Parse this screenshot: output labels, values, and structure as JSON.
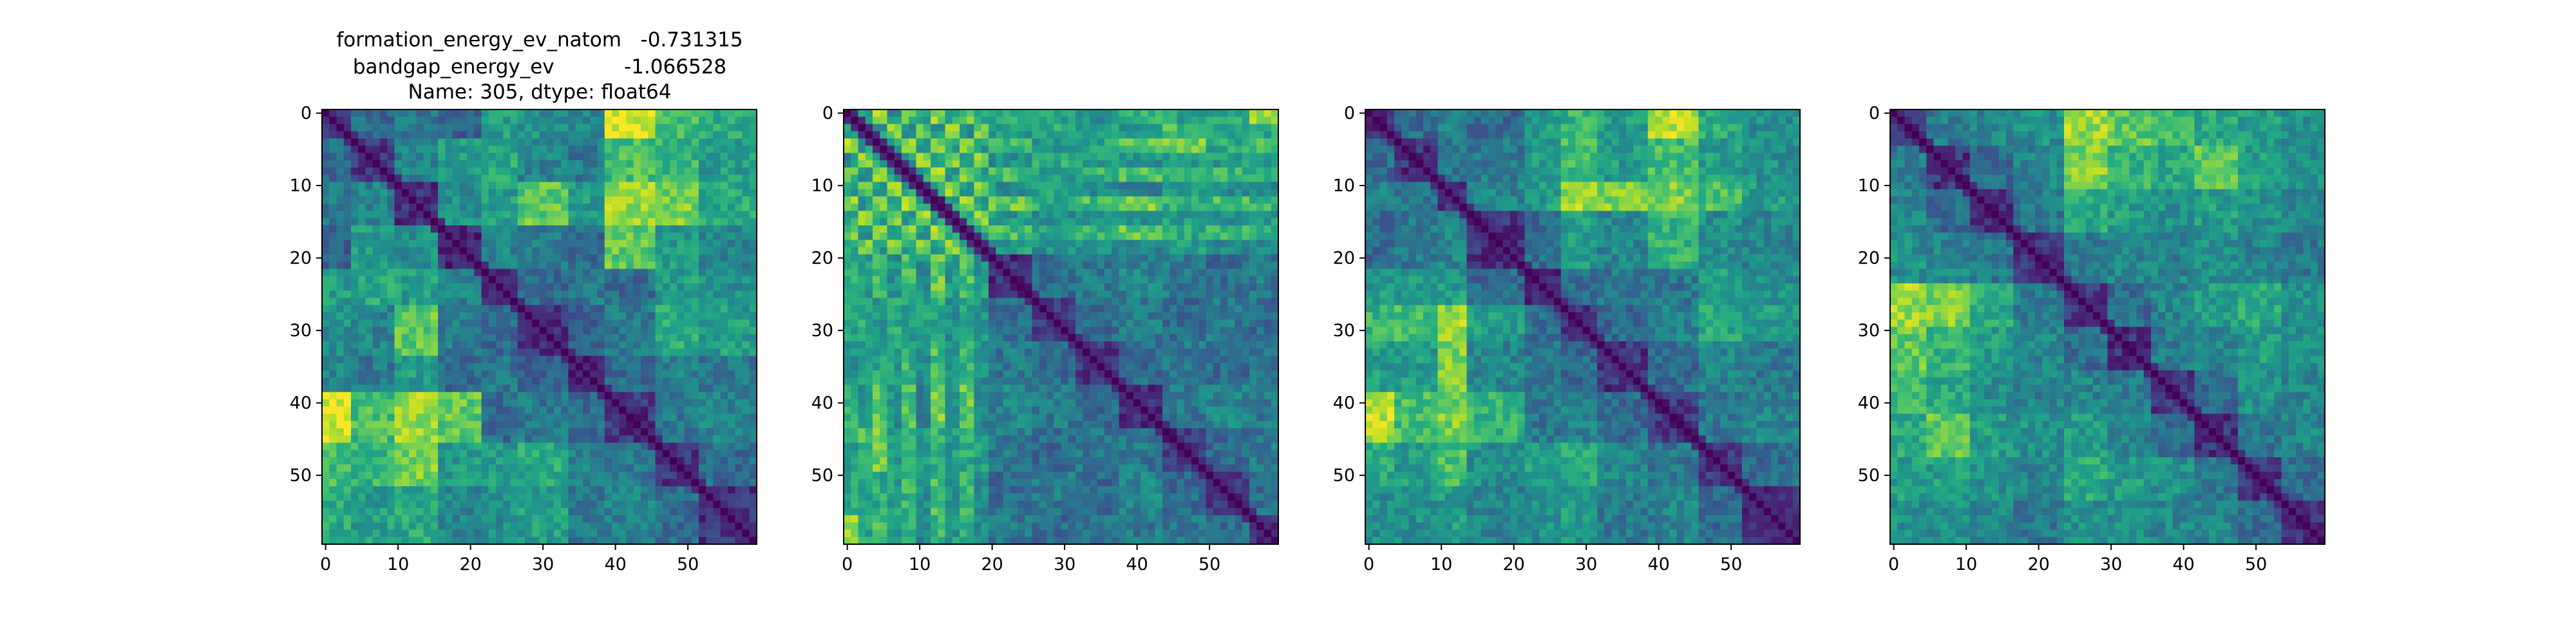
{
  "figure": {
    "title_lines": [
      "formation_energy_ev_natom   -0.731315",
      "bandgap_energy_ev           -1.066528",
      "Name: 305, dtype: float64"
    ]
  },
  "chart_data": [
    {
      "type": "heatmap",
      "colormap": "viridis",
      "size": 60,
      "title": "",
      "xlabel": "",
      "ylabel": "",
      "xlim": [
        0,
        59
      ],
      "ylim": [
        59,
        0
      ],
      "xticks": [
        0,
        10,
        20,
        30,
        40,
        50
      ],
      "yticks": [
        0,
        10,
        20,
        30,
        40,
        50
      ],
      "grid": false,
      "block_boundaries": [
        0,
        4,
        10,
        16,
        22,
        27,
        34,
        39,
        46,
        52,
        60
      ],
      "block_values": [
        [
          0.2,
          0.35,
          0.4,
          0.3,
          0.55,
          0.5,
          0.45,
          0.95,
          0.7,
          0.6
        ],
        [
          0.35,
          0.15,
          0.45,
          0.55,
          0.6,
          0.45,
          0.4,
          0.7,
          0.65,
          0.55
        ],
        [
          0.4,
          0.45,
          0.15,
          0.5,
          0.55,
          0.75,
          0.55,
          0.85,
          0.8,
          0.6
        ],
        [
          0.3,
          0.55,
          0.5,
          0.12,
          0.45,
          0.4,
          0.35,
          0.75,
          0.55,
          0.45
        ],
        [
          0.55,
          0.6,
          0.55,
          0.45,
          0.15,
          0.35,
          0.4,
          0.35,
          0.55,
          0.5
        ],
        [
          0.5,
          0.45,
          0.75,
          0.4,
          0.35,
          0.15,
          0.3,
          0.4,
          0.6,
          0.55
        ],
        [
          0.45,
          0.4,
          0.55,
          0.35,
          0.4,
          0.3,
          0.12,
          0.35,
          0.45,
          0.4
        ],
        [
          0.95,
          0.7,
          0.85,
          0.75,
          0.35,
          0.4,
          0.35,
          0.15,
          0.4,
          0.45
        ],
        [
          0.7,
          0.65,
          0.8,
          0.55,
          0.55,
          0.6,
          0.45,
          0.4,
          0.15,
          0.35
        ],
        [
          0.6,
          0.55,
          0.6,
          0.45,
          0.5,
          0.55,
          0.4,
          0.45,
          0.35,
          0.15
        ]
      ]
    },
    {
      "type": "heatmap",
      "colormap": "viridis",
      "size": 60,
      "title": "",
      "xlabel": "",
      "ylabel": "",
      "xlim": [
        0,
        59
      ],
      "ylim": [
        59,
        0
      ],
      "xticks": [
        0,
        10,
        20,
        30,
        40,
        50
      ],
      "yticks": [
        0,
        10,
        20,
        30,
        40,
        50
      ],
      "grid": false,
      "block_boundaries": [
        0,
        2,
        4,
        6,
        8,
        10,
        12,
        14,
        16,
        18,
        20,
        26,
        32,
        38,
        44,
        50,
        56,
        60
      ],
      "block_values": [
        [
          0.2,
          0.6,
          0.85,
          0.5,
          0.7,
          0.55,
          0.8,
          0.6,
          0.75,
          0.55,
          0.6,
          0.55,
          0.5,
          0.65,
          0.55,
          0.6,
          0.85
        ],
        [
          0.6,
          0.15,
          0.55,
          0.8,
          0.5,
          0.75,
          0.55,
          0.85,
          0.5,
          0.8,
          0.55,
          0.6,
          0.55,
          0.5,
          0.7,
          0.55,
          0.6
        ],
        [
          0.85,
          0.55,
          0.15,
          0.6,
          0.85,
          0.55,
          0.8,
          0.6,
          0.85,
          0.55,
          0.7,
          0.55,
          0.6,
          0.75,
          0.8,
          0.6,
          0.7
        ],
        [
          0.5,
          0.8,
          0.6,
          0.15,
          0.55,
          0.85,
          0.55,
          0.8,
          0.55,
          0.85,
          0.5,
          0.6,
          0.55,
          0.5,
          0.55,
          0.55,
          0.5
        ],
        [
          0.7,
          0.5,
          0.85,
          0.55,
          0.15,
          0.6,
          0.85,
          0.55,
          0.8,
          0.6,
          0.7,
          0.55,
          0.65,
          0.7,
          0.6,
          0.65,
          0.6
        ],
        [
          0.55,
          0.75,
          0.55,
          0.85,
          0.6,
          0.15,
          0.6,
          0.85,
          0.55,
          0.8,
          0.5,
          0.55,
          0.5,
          0.45,
          0.55,
          0.5,
          0.45
        ],
        [
          0.8,
          0.55,
          0.8,
          0.55,
          0.85,
          0.6,
          0.15,
          0.55,
          0.85,
          0.55,
          0.75,
          0.6,
          0.7,
          0.8,
          0.65,
          0.7,
          0.65
        ],
        [
          0.6,
          0.85,
          0.6,
          0.8,
          0.55,
          0.85,
          0.55,
          0.15,
          0.6,
          0.8,
          0.55,
          0.5,
          0.55,
          0.5,
          0.55,
          0.5,
          0.55
        ],
        [
          0.75,
          0.5,
          0.85,
          0.55,
          0.8,
          0.55,
          0.85,
          0.6,
          0.15,
          0.6,
          0.7,
          0.6,
          0.65,
          0.75,
          0.6,
          0.7,
          0.65
        ],
        [
          0.55,
          0.8,
          0.55,
          0.85,
          0.6,
          0.8,
          0.55,
          0.8,
          0.6,
          0.15,
          0.55,
          0.5,
          0.5,
          0.45,
          0.55,
          0.5,
          0.5
        ],
        [
          0.6,
          0.55,
          0.7,
          0.5,
          0.7,
          0.5,
          0.75,
          0.55,
          0.7,
          0.55,
          0.15,
          0.35,
          0.4,
          0.45,
          0.4,
          0.35,
          0.4
        ],
        [
          0.55,
          0.6,
          0.55,
          0.6,
          0.55,
          0.55,
          0.6,
          0.5,
          0.6,
          0.5,
          0.35,
          0.15,
          0.35,
          0.4,
          0.35,
          0.4,
          0.35
        ],
        [
          0.5,
          0.55,
          0.6,
          0.55,
          0.65,
          0.5,
          0.7,
          0.55,
          0.65,
          0.5,
          0.4,
          0.35,
          0.15,
          0.35,
          0.4,
          0.35,
          0.4
        ],
        [
          0.65,
          0.5,
          0.75,
          0.5,
          0.7,
          0.45,
          0.8,
          0.5,
          0.75,
          0.45,
          0.45,
          0.4,
          0.35,
          0.15,
          0.4,
          0.45,
          0.4
        ],
        [
          0.55,
          0.7,
          0.8,
          0.55,
          0.6,
          0.55,
          0.65,
          0.55,
          0.6,
          0.55,
          0.4,
          0.35,
          0.4,
          0.4,
          0.15,
          0.35,
          0.4
        ],
        [
          0.6,
          0.55,
          0.6,
          0.55,
          0.65,
          0.5,
          0.7,
          0.5,
          0.7,
          0.5,
          0.35,
          0.4,
          0.35,
          0.45,
          0.35,
          0.15,
          0.35
        ],
        [
          0.85,
          0.6,
          0.7,
          0.5,
          0.6,
          0.45,
          0.65,
          0.55,
          0.65,
          0.5,
          0.4,
          0.35,
          0.4,
          0.4,
          0.4,
          0.35,
          0.15
        ]
      ]
    },
    {
      "type": "heatmap",
      "colormap": "viridis",
      "size": 60,
      "title": "",
      "xlabel": "",
      "ylabel": "",
      "xlim": [
        0,
        59
      ],
      "ylim": [
        59,
        0
      ],
      "xticks": [
        0,
        10,
        20,
        30,
        40,
        50
      ],
      "yticks": [
        0,
        10,
        20,
        30,
        40,
        50
      ],
      "grid": false,
      "block_boundaries": [
        0,
        4,
        10,
        14,
        22,
        27,
        32,
        39,
        46,
        52,
        60
      ],
      "block_values": [
        [
          0.15,
          0.35,
          0.45,
          0.35,
          0.55,
          0.65,
          0.55,
          0.9,
          0.6,
          0.5
        ],
        [
          0.35,
          0.15,
          0.4,
          0.4,
          0.55,
          0.7,
          0.55,
          0.7,
          0.55,
          0.5
        ],
        [
          0.45,
          0.4,
          0.15,
          0.45,
          0.55,
          0.85,
          0.8,
          0.8,
          0.7,
          0.55
        ],
        [
          0.35,
          0.4,
          0.45,
          0.15,
          0.35,
          0.55,
          0.45,
          0.65,
          0.5,
          0.45
        ],
        [
          0.55,
          0.55,
          0.55,
          0.35,
          0.15,
          0.35,
          0.4,
          0.4,
          0.55,
          0.5
        ],
        [
          0.65,
          0.7,
          0.85,
          0.55,
          0.35,
          0.15,
          0.35,
          0.45,
          0.6,
          0.55
        ],
        [
          0.55,
          0.55,
          0.8,
          0.45,
          0.4,
          0.35,
          0.15,
          0.35,
          0.45,
          0.4
        ],
        [
          0.9,
          0.7,
          0.8,
          0.65,
          0.4,
          0.45,
          0.35,
          0.15,
          0.4,
          0.45
        ],
        [
          0.6,
          0.55,
          0.7,
          0.5,
          0.55,
          0.6,
          0.45,
          0.4,
          0.15,
          0.35
        ],
        [
          0.5,
          0.5,
          0.55,
          0.45,
          0.5,
          0.55,
          0.4,
          0.45,
          0.35,
          0.15
        ]
      ]
    },
    {
      "type": "heatmap",
      "colormap": "viridis",
      "size": 60,
      "title": "",
      "xlabel": "",
      "ylabel": "",
      "xlim": [
        0,
        59
      ],
      "ylim": [
        59,
        0
      ],
      "xticks": [
        0,
        10,
        20,
        30,
        40,
        50
      ],
      "yticks": [
        0,
        10,
        20,
        30,
        40,
        50
      ],
      "grid": false,
      "block_boundaries": [
        0,
        5,
        11,
        17,
        24,
        30,
        36,
        42,
        48,
        54,
        60
      ],
      "block_values": [
        [
          0.15,
          0.4,
          0.45,
          0.5,
          0.85,
          0.75,
          0.7,
          0.6,
          0.55,
          0.5
        ],
        [
          0.4,
          0.15,
          0.35,
          0.45,
          0.8,
          0.65,
          0.6,
          0.75,
          0.55,
          0.5
        ],
        [
          0.45,
          0.35,
          0.15,
          0.4,
          0.6,
          0.55,
          0.5,
          0.55,
          0.5,
          0.45
        ],
        [
          0.5,
          0.45,
          0.4,
          0.15,
          0.4,
          0.45,
          0.45,
          0.5,
          0.45,
          0.4
        ],
        [
          0.85,
          0.8,
          0.6,
          0.4,
          0.15,
          0.35,
          0.45,
          0.55,
          0.6,
          0.5
        ],
        [
          0.75,
          0.65,
          0.55,
          0.45,
          0.35,
          0.15,
          0.4,
          0.45,
          0.55,
          0.5
        ],
        [
          0.7,
          0.6,
          0.5,
          0.45,
          0.45,
          0.4,
          0.15,
          0.35,
          0.5,
          0.45
        ],
        [
          0.6,
          0.75,
          0.55,
          0.5,
          0.55,
          0.45,
          0.35,
          0.15,
          0.4,
          0.45
        ],
        [
          0.55,
          0.55,
          0.5,
          0.45,
          0.6,
          0.55,
          0.5,
          0.4,
          0.15,
          0.35
        ],
        [
          0.5,
          0.5,
          0.45,
          0.4,
          0.5,
          0.5,
          0.45,
          0.45,
          0.35,
          0.15
        ]
      ]
    }
  ]
}
